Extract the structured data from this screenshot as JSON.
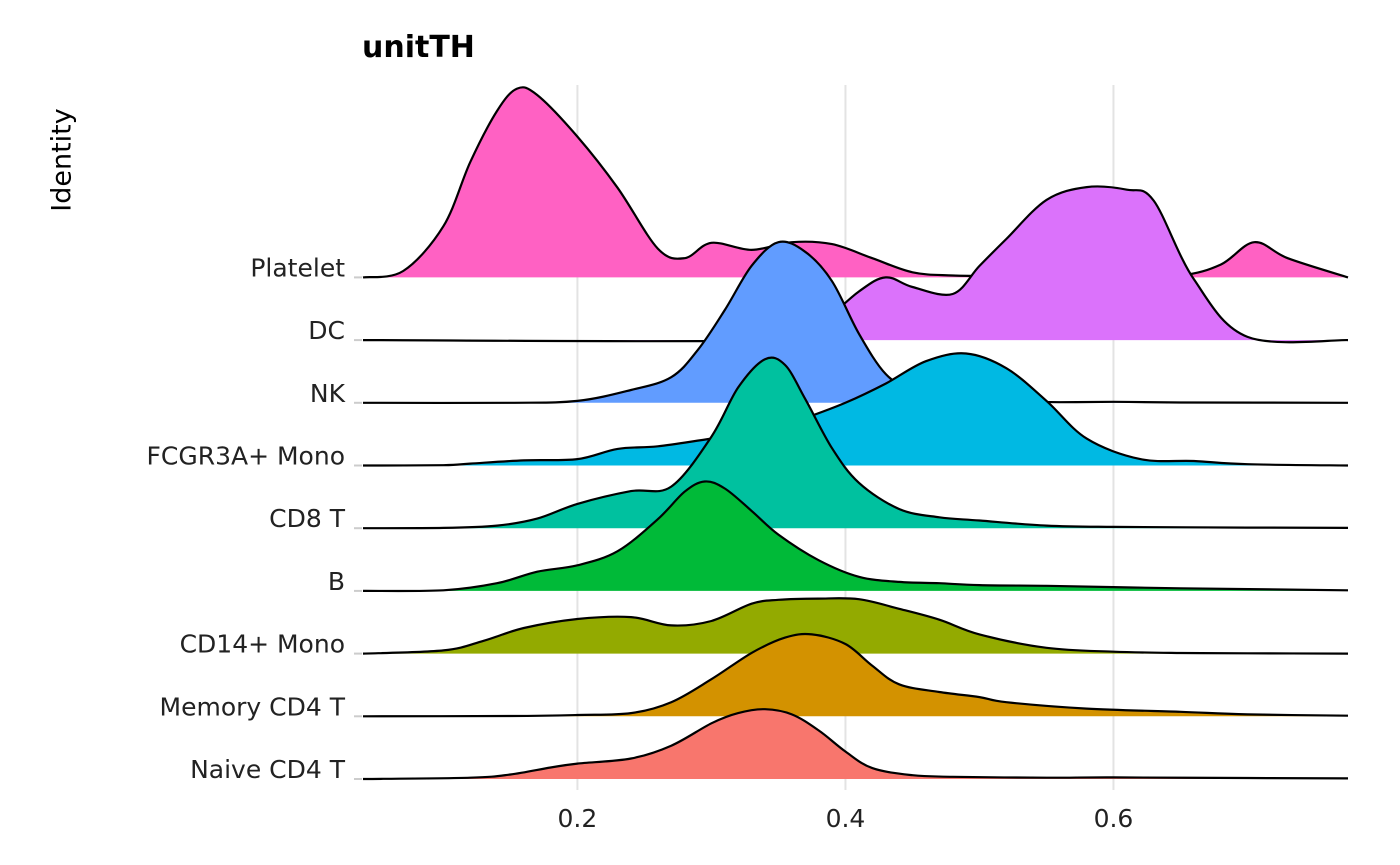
{
  "chart_data": {
    "type": "ridgeline",
    "title": "unitTH",
    "xlabel": "",
    "ylabel": "Identity",
    "xlim": [
      0.04,
      0.775
    ],
    "xticks": [
      0.2,
      0.4,
      0.6
    ],
    "xtick_labels": [
      "0.2",
      "0.4",
      "0.6"
    ],
    "grid": true,
    "legend": "none",
    "categories": [
      "Naive CD4 T",
      "Memory CD4 T",
      "CD14+ Mono",
      "B",
      "CD8 T",
      "FCGR3A+ Mono",
      "NK",
      "DC",
      "Platelet"
    ],
    "series": [
      {
        "name": "Naive CD4 T",
        "color": "#F8766D",
        "x": [
          0.04,
          0.12,
          0.15,
          0.18,
          0.2,
          0.24,
          0.27,
          0.3,
          0.32,
          0.34,
          0.36,
          0.38,
          0.4,
          0.42,
          0.45,
          0.48,
          0.55,
          0.6,
          0.7,
          0.775
        ],
        "y": [
          0,
          0.02,
          0.07,
          0.18,
          0.24,
          0.32,
          0.52,
          0.87,
          1.03,
          1.09,
          1.01,
          0.76,
          0.43,
          0.17,
          0.06,
          0.035,
          0.02,
          0.025,
          0.015,
          0.01
        ]
      },
      {
        "name": "Memory CD4 T",
        "color": "#D39200",
        "x": [
          0.04,
          0.15,
          0.2,
          0.24,
          0.27,
          0.3,
          0.33,
          0.355,
          0.375,
          0.4,
          0.42,
          0.44,
          0.47,
          0.5,
          0.52,
          0.58,
          0.65,
          0.7,
          0.775
        ],
        "y": [
          0,
          0.005,
          0.02,
          0.05,
          0.22,
          0.58,
          0.99,
          1.23,
          1.28,
          1.13,
          0.79,
          0.5,
          0.38,
          0.3,
          0.22,
          0.12,
          0.07,
          0.03,
          0.01
        ]
      },
      {
        "name": "CD14+ Mono",
        "color": "#93AA00",
        "x": [
          0.04,
          0.1,
          0.13,
          0.16,
          0.2,
          0.24,
          0.27,
          0.3,
          0.33,
          0.35,
          0.38,
          0.41,
          0.44,
          0.47,
          0.5,
          0.55,
          0.6,
          0.65,
          0.7,
          0.775
        ],
        "y": [
          0,
          0.05,
          0.2,
          0.4,
          0.54,
          0.57,
          0.44,
          0.51,
          0.78,
          0.84,
          0.86,
          0.85,
          0.7,
          0.53,
          0.3,
          0.09,
          0.03,
          0.01,
          0.005,
          0.0
        ]
      },
      {
        "name": "B",
        "color": "#00BA38",
        "x": [
          0.04,
          0.1,
          0.14,
          0.17,
          0.2,
          0.23,
          0.26,
          0.28,
          0.295,
          0.31,
          0.33,
          0.35,
          0.38,
          0.41,
          0.44,
          0.47,
          0.5,
          0.55,
          0.6,
          0.65,
          0.775
        ],
        "y": [
          0,
          0.01,
          0.12,
          0.3,
          0.4,
          0.62,
          1.12,
          1.55,
          1.71,
          1.6,
          1.25,
          0.88,
          0.48,
          0.22,
          0.14,
          0.12,
          0.09,
          0.08,
          0.06,
          0.04,
          0.01
        ]
      },
      {
        "name": "CD8 T",
        "color": "#00C19F",
        "x": [
          0.04,
          0.1,
          0.14,
          0.17,
          0.2,
          0.24,
          0.27,
          0.3,
          0.32,
          0.34,
          0.355,
          0.37,
          0.39,
          0.41,
          0.44,
          0.47,
          0.5,
          0.55,
          0.6,
          0.7,
          0.775
        ],
        "y": [
          0,
          0.005,
          0.04,
          0.15,
          0.38,
          0.58,
          0.65,
          1.43,
          2.2,
          2.64,
          2.55,
          2.02,
          1.25,
          0.71,
          0.3,
          0.17,
          0.12,
          0.04,
          0.02,
          0.01,
          0.005
        ]
      },
      {
        "name": "FCGR3A+ Mono",
        "color": "#00B9E3",
        "x": [
          0.04,
          0.1,
          0.12,
          0.16,
          0.2,
          0.23,
          0.26,
          0.3,
          0.34,
          0.37,
          0.4,
          0.43,
          0.46,
          0.49,
          0.52,
          0.55,
          0.58,
          0.62,
          0.66,
          0.7,
          0.775
        ],
        "y": [
          0,
          0.005,
          0.03,
          0.08,
          0.1,
          0.26,
          0.3,
          0.42,
          0.53,
          0.74,
          0.98,
          1.28,
          1.63,
          1.75,
          1.52,
          1.01,
          0.42,
          0.1,
          0.07,
          0.02,
          0.0
        ]
      },
      {
        "name": "NK",
        "color": "#619CFF",
        "x": [
          0.04,
          0.15,
          0.2,
          0.24,
          0.27,
          0.29,
          0.31,
          0.33,
          0.35,
          0.37,
          0.39,
          0.41,
          0.43,
          0.45,
          0.48,
          0.52,
          0.56,
          0.6,
          0.65,
          0.775
        ],
        "y": [
          0,
          0.0,
          0.03,
          0.2,
          0.4,
          0.83,
          1.45,
          2.14,
          2.51,
          2.36,
          1.9,
          1.08,
          0.45,
          0.2,
          0.04,
          0.02,
          0.01,
          0.015,
          0.005,
          0.0
        ]
      },
      {
        "name": "DC",
        "color": "#DB72FB",
        "x": [
          0.04,
          0.35,
          0.38,
          0.41,
          0.43,
          0.45,
          0.48,
          0.5,
          0.52,
          0.55,
          0.58,
          0.61,
          0.63,
          0.66,
          0.7,
          0.775
        ],
        "y": [
          0,
          0.0,
          0.24,
          0.76,
          0.98,
          0.83,
          0.72,
          1.16,
          1.58,
          2.19,
          2.39,
          2.35,
          2.18,
          0.95,
          0.05,
          0.0
        ]
      },
      {
        "name": "Platelet",
        "color": "#FF61C3",
        "x": [
          0.04,
          0.07,
          0.1,
          0.12,
          0.14,
          0.155,
          0.17,
          0.2,
          0.23,
          0.26,
          0.28,
          0.3,
          0.33,
          0.36,
          0.39,
          0.42,
          0.45,
          0.48,
          0.52,
          0.56,
          0.6,
          0.65,
          0.68,
          0.705,
          0.73,
          0.775
        ],
        "y": [
          0,
          0.1,
          0.8,
          1.8,
          2.6,
          2.95,
          2.85,
          2.2,
          1.4,
          0.45,
          0.3,
          0.54,
          0.43,
          0.55,
          0.52,
          0.3,
          0.08,
          0.03,
          0.02,
          0.015,
          0.015,
          0.03,
          0.2,
          0.55,
          0.3,
          0.0
        ]
      }
    ]
  }
}
